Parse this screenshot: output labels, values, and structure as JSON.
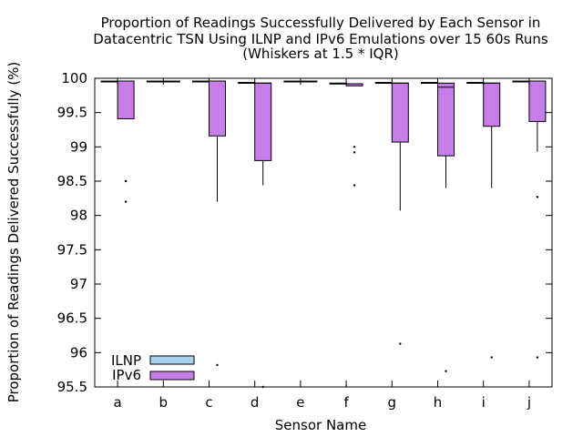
{
  "chart_data": {
    "type": "boxplot",
    "title": [
      "Proportion of Readings Successfully Delivered by Each Sensor in",
      "Datacentric TSN Using ILNP and IPv6 Emulations over 15 60s Runs",
      "(Whiskers at 1.5 * IQR)"
    ],
    "xlabel": "Sensor Name",
    "ylabel": "Proportion of Readings Delivered Successfully (%)",
    "ylim": [
      95.5,
      100
    ],
    "yticks": [
      "95.5",
      "96",
      "96.5",
      "97",
      "97.5",
      "98",
      "98.5",
      "99",
      "99.5",
      "100"
    ],
    "categories": [
      "a",
      "b",
      "c",
      "d",
      "e",
      "f",
      "g",
      "h",
      "i",
      "j"
    ],
    "legend_position": "bottom-left",
    "grid": false,
    "series": [
      {
        "name": "ILNP",
        "color": "#a7d3ee",
        "boxes": [
          {
            "q1": 99.95,
            "median": 99.95,
            "q3": 99.96,
            "whislo": 99.95,
            "whishi": 99.96,
            "fliers": []
          },
          {
            "q1": 99.95,
            "median": 99.95,
            "q3": 99.96,
            "whislo": 99.95,
            "whishi": 99.96,
            "fliers": []
          },
          {
            "q1": 99.95,
            "median": 99.95,
            "q3": 99.96,
            "whislo": 99.95,
            "whishi": 99.96,
            "fliers": []
          },
          {
            "q1": 99.93,
            "median": 99.93,
            "q3": 99.94,
            "whislo": 99.93,
            "whishi": 99.94,
            "fliers": []
          },
          {
            "q1": 99.95,
            "median": 99.95,
            "q3": 99.96,
            "whislo": 99.95,
            "whishi": 99.96,
            "fliers": []
          },
          {
            "q1": 99.92,
            "median": 99.92,
            "q3": 99.93,
            "whislo": 99.92,
            "whishi": 99.93,
            "fliers": []
          },
          {
            "q1": 99.93,
            "median": 99.93,
            "q3": 99.94,
            "whislo": 99.93,
            "whishi": 99.94,
            "fliers": []
          },
          {
            "q1": 99.93,
            "median": 99.93,
            "q3": 99.94,
            "whislo": 99.93,
            "whishi": 99.94,
            "fliers": []
          },
          {
            "q1": 99.93,
            "median": 99.93,
            "q3": 99.94,
            "whislo": 99.93,
            "whishi": 99.94,
            "fliers": []
          },
          {
            "q1": 99.95,
            "median": 99.95,
            "q3": 99.96,
            "whislo": 99.95,
            "whishi": 99.96,
            "fliers": []
          }
        ]
      },
      {
        "name": "IPv6",
        "color": "#c77de8",
        "boxes": [
          {
            "q1": 99.41,
            "median": 99.96,
            "q3": 99.96,
            "whislo": 99.41,
            "whishi": 99.96,
            "fliers": [
              98.5,
              98.2
            ]
          },
          {
            "q1": 99.95,
            "median": 99.95,
            "q3": 99.96,
            "whislo": 99.95,
            "whishi": 99.96,
            "fliers": []
          },
          {
            "q1": 99.16,
            "median": 99.96,
            "q3": 99.96,
            "whislo": 98.2,
            "whishi": 99.96,
            "fliers": [
              95.82
            ]
          },
          {
            "q1": 98.8,
            "median": 99.93,
            "q3": 99.93,
            "whislo": 98.44,
            "whishi": 99.93,
            "fliers": [
              95.5
            ]
          },
          {
            "q1": 99.95,
            "median": 99.95,
            "q3": 99.96,
            "whislo": 99.95,
            "whishi": 99.96,
            "fliers": []
          },
          {
            "q1": 99.89,
            "median": 99.92,
            "q3": 99.92,
            "whislo": 99.89,
            "whishi": 99.92,
            "fliers": [
              99.0,
              98.92,
              98.44
            ]
          },
          {
            "q1": 99.07,
            "median": 99.93,
            "q3": 99.93,
            "whislo": 98.07,
            "whishi": 99.93,
            "fliers": [
              96.13
            ]
          },
          {
            "q1": 98.87,
            "median": 99.87,
            "q3": 99.93,
            "whislo": 98.4,
            "whishi": 99.93,
            "fliers": [
              95.73
            ]
          },
          {
            "q1": 99.3,
            "median": 99.93,
            "q3": 99.93,
            "whislo": 98.4,
            "whishi": 99.93,
            "fliers": [
              95.93
            ]
          },
          {
            "q1": 99.37,
            "median": 99.96,
            "q3": 99.96,
            "whislo": 98.93,
            "whishi": 99.96,
            "fliers": [
              98.27,
              95.93
            ]
          }
        ]
      }
    ]
  }
}
